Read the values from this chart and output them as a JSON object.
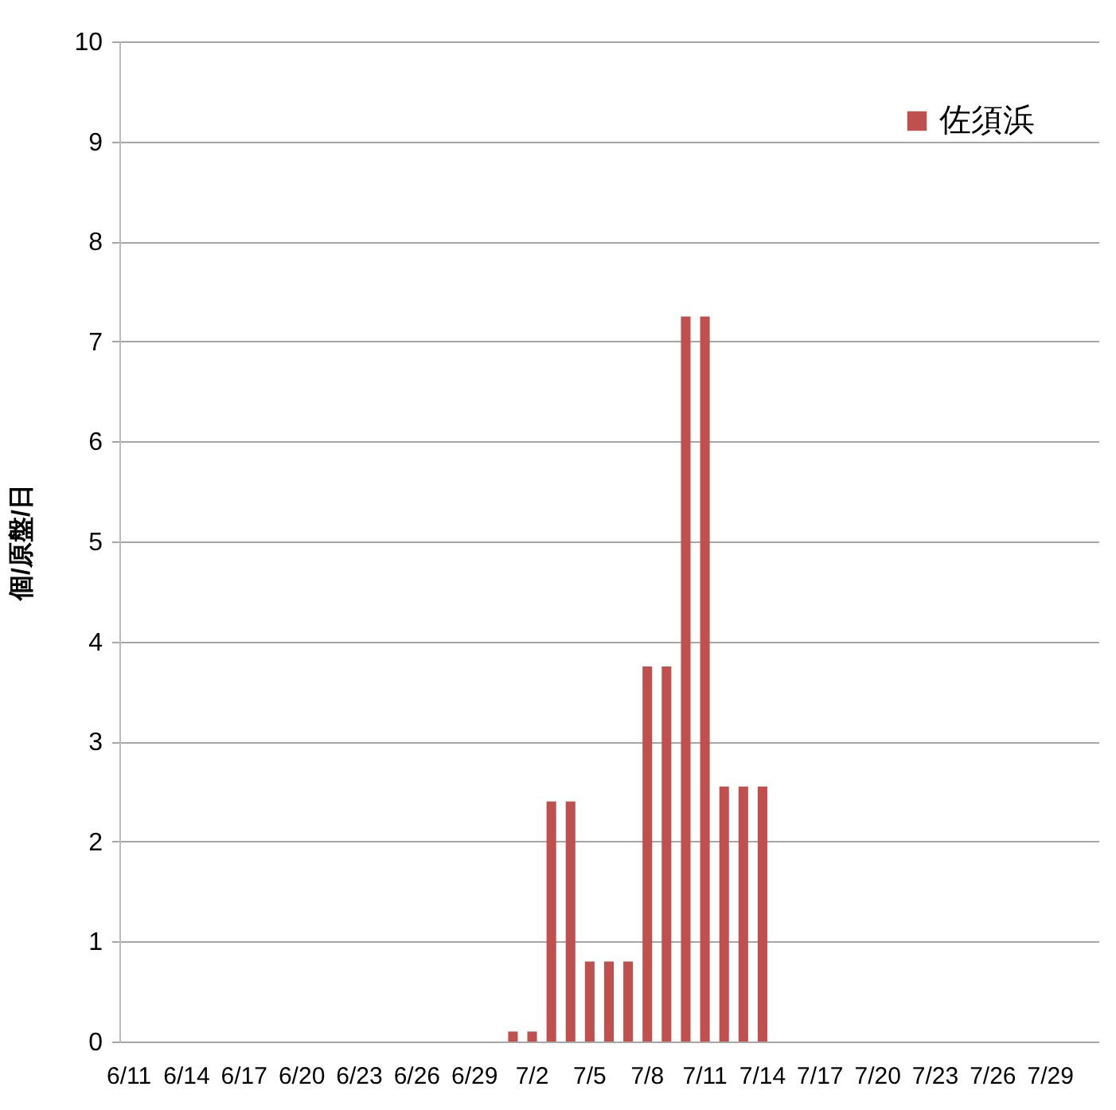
{
  "chart_data": {
    "type": "bar",
    "ylabel": "個/原盤/日",
    "categories": [
      "6/11",
      null,
      null,
      "6/14",
      null,
      null,
      "6/17",
      null,
      null,
      "6/20",
      null,
      null,
      "6/23",
      null,
      null,
      "6/26",
      null,
      null,
      "6/29",
      null,
      null,
      "7/2",
      null,
      null,
      "7/5",
      null,
      null,
      "7/8",
      null,
      null,
      "7/11",
      null,
      null,
      "7/14",
      null,
      null,
      "7/17",
      null,
      null,
      "7/20",
      null,
      null,
      "7/23",
      null,
      null,
      "7/26",
      null,
      null,
      "7/29",
      null,
      null
    ],
    "series": [
      {
        "name": "佐須浜",
        "color": "#c0504d",
        "values": [
          null,
          null,
          null,
          null,
          null,
          null,
          null,
          null,
          null,
          null,
          null,
          null,
          null,
          null,
          null,
          null,
          null,
          null,
          null,
          null,
          0.1,
          0.1,
          2.4,
          2.4,
          0.8,
          0.8,
          0.8,
          3.75,
          3.75,
          7.25,
          7.25,
          2.55,
          2.55,
          2.55,
          null,
          null,
          null,
          null,
          null,
          null,
          null,
          null,
          null,
          null,
          null,
          null,
          null,
          null,
          null,
          null,
          null
        ]
      }
    ],
    "ylim": [
      0,
      10
    ],
    "yticks": [
      0,
      1,
      2,
      3,
      4,
      5,
      6,
      7,
      8,
      9,
      10
    ],
    "grid": "y",
    "legend": "top right"
  }
}
